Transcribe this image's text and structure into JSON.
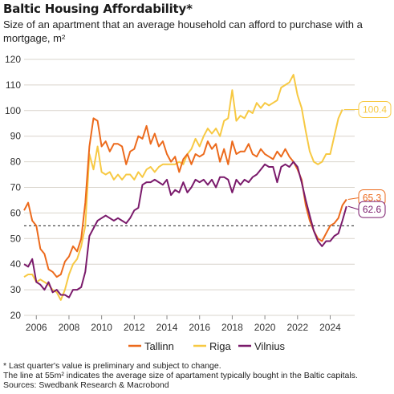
{
  "title": "Baltic Housing Affordability*",
  "subtitle": "Size of an apartment that an average household can afford to purchase with a mortgage, m²",
  "footnotes": [
    "* Last quarter's value is preliminary and subject to change.",
    "The line at 55m² indicates the average size of apartament typically bought in the Baltic capitals.",
    "Sources: Swedbank Research & Macrobond"
  ],
  "colors": {
    "Tallinn": "#ec6a1c",
    "Riga": "#f7c943",
    "Vilnius": "#7a1a6b",
    "grid": "#d9d4cc",
    "reference": "#222222"
  },
  "chart_data": {
    "type": "line",
    "title": "Baltic Housing Affordability*",
    "xlabel": "",
    "ylabel": "",
    "xlim": [
      2005.25,
      2025.5
    ],
    "ylim": [
      20,
      120
    ],
    "y_ticks": [
      20,
      30,
      40,
      50,
      60,
      70,
      80,
      90,
      100,
      110,
      120
    ],
    "x_ticks": [
      2006,
      2008,
      2010,
      2012,
      2014,
      2016,
      2018,
      2020,
      2022,
      2024
    ],
    "x_tick_labels": [
      "2006",
      "2008",
      "2010",
      "2012",
      "2014",
      "2016",
      "2018",
      "2020",
      "2022",
      "2024"
    ],
    "grid": true,
    "legend": "bottom",
    "reference_line": {
      "y": 55,
      "style": "dashed"
    },
    "series": [
      {
        "name": "Tallinn",
        "end_label": "65.3",
        "points": [
          [
            2005.25,
            61
          ],
          [
            2005.5,
            64
          ],
          [
            2005.75,
            57
          ],
          [
            2006.0,
            55
          ],
          [
            2006.25,
            46
          ],
          [
            2006.5,
            44
          ],
          [
            2006.75,
            38
          ],
          [
            2007.0,
            37
          ],
          [
            2007.25,
            35
          ],
          [
            2007.5,
            36
          ],
          [
            2007.75,
            41
          ],
          [
            2008.0,
            43
          ],
          [
            2008.25,
            47
          ],
          [
            2008.5,
            45
          ],
          [
            2008.75,
            50
          ],
          [
            2009.0,
            64
          ],
          [
            2009.25,
            86
          ],
          [
            2009.5,
            97
          ],
          [
            2009.75,
            96
          ],
          [
            2010.0,
            86
          ],
          [
            2010.25,
            88
          ],
          [
            2010.5,
            84
          ],
          [
            2010.75,
            87
          ],
          [
            2011.0,
            87
          ],
          [
            2011.25,
            86
          ],
          [
            2011.5,
            79
          ],
          [
            2011.75,
            84
          ],
          [
            2012.0,
            85
          ],
          [
            2012.25,
            90
          ],
          [
            2012.5,
            89
          ],
          [
            2012.75,
            94
          ],
          [
            2013.0,
            87
          ],
          [
            2013.25,
            91
          ],
          [
            2013.5,
            86
          ],
          [
            2013.75,
            88
          ],
          [
            2014.0,
            83
          ],
          [
            2014.25,
            80
          ],
          [
            2014.5,
            82
          ],
          [
            2014.75,
            76
          ],
          [
            2015.0,
            81
          ],
          [
            2015.25,
            83
          ],
          [
            2015.5,
            79
          ],
          [
            2015.75,
            83
          ],
          [
            2016.0,
            82
          ],
          [
            2016.25,
            83
          ],
          [
            2016.5,
            88
          ],
          [
            2016.75,
            85
          ],
          [
            2017.0,
            87
          ],
          [
            2017.25,
            80
          ],
          [
            2017.5,
            85
          ],
          [
            2017.75,
            79
          ],
          [
            2018.0,
            88
          ],
          [
            2018.25,
            83
          ],
          [
            2018.5,
            84
          ],
          [
            2018.75,
            84
          ],
          [
            2019.0,
            87
          ],
          [
            2019.25,
            83
          ],
          [
            2019.5,
            82
          ],
          [
            2019.75,
            85
          ],
          [
            2020.0,
            83
          ],
          [
            2020.25,
            82
          ],
          [
            2020.5,
            81
          ],
          [
            2020.75,
            84
          ],
          [
            2021.0,
            82
          ],
          [
            2021.25,
            85
          ],
          [
            2021.5,
            82
          ],
          [
            2021.75,
            80
          ],
          [
            2022.0,
            77
          ],
          [
            2022.25,
            73
          ],
          [
            2022.5,
            63
          ],
          [
            2022.75,
            57
          ],
          [
            2023.0,
            53
          ],
          [
            2023.25,
            50
          ],
          [
            2023.5,
            49
          ],
          [
            2023.75,
            52
          ],
          [
            2024.0,
            55
          ],
          [
            2024.25,
            56
          ],
          [
            2024.5,
            58
          ],
          [
            2024.75,
            63
          ],
          [
            2025.0,
            65.3
          ]
        ]
      },
      {
        "name": "Riga",
        "end_label": "100.4",
        "points": [
          [
            2005.25,
            35
          ],
          [
            2005.5,
            36
          ],
          [
            2005.75,
            36
          ],
          [
            2006.0,
            33
          ],
          [
            2006.25,
            34
          ],
          [
            2006.5,
            33
          ],
          [
            2006.75,
            32
          ],
          [
            2007.0,
            30
          ],
          [
            2007.25,
            29
          ],
          [
            2007.5,
            26
          ],
          [
            2007.75,
            30
          ],
          [
            2008.0,
            36
          ],
          [
            2008.25,
            40
          ],
          [
            2008.5,
            42
          ],
          [
            2008.75,
            47
          ],
          [
            2009.0,
            55
          ],
          [
            2009.25,
            83
          ],
          [
            2009.5,
            77
          ],
          [
            2009.75,
            86
          ],
          [
            2010.0,
            76
          ],
          [
            2010.25,
            75
          ],
          [
            2010.5,
            76
          ],
          [
            2010.75,
            73
          ],
          [
            2011.0,
            75
          ],
          [
            2011.25,
            73
          ],
          [
            2011.5,
            75
          ],
          [
            2011.75,
            75
          ],
          [
            2012.0,
            73
          ],
          [
            2012.25,
            76
          ],
          [
            2012.5,
            74
          ],
          [
            2012.75,
            77
          ],
          [
            2013.0,
            78
          ],
          [
            2013.25,
            76
          ],
          [
            2013.5,
            78
          ],
          [
            2013.75,
            79
          ],
          [
            2014.0,
            79
          ],
          [
            2014.25,
            79
          ],
          [
            2014.5,
            79
          ],
          [
            2014.75,
            80
          ],
          [
            2015.0,
            79
          ],
          [
            2015.25,
            83
          ],
          [
            2015.5,
            85
          ],
          [
            2015.75,
            89
          ],
          [
            2016.0,
            86
          ],
          [
            2016.25,
            90
          ],
          [
            2016.5,
            93
          ],
          [
            2016.75,
            91
          ],
          [
            2017.0,
            93
          ],
          [
            2017.25,
            90
          ],
          [
            2017.5,
            96
          ],
          [
            2017.75,
            97
          ],
          [
            2018.0,
            108
          ],
          [
            2018.25,
            96
          ],
          [
            2018.5,
            98
          ],
          [
            2018.75,
            97
          ],
          [
            2019.0,
            100
          ],
          [
            2019.25,
            99
          ],
          [
            2019.5,
            103
          ],
          [
            2019.75,
            101
          ],
          [
            2020.0,
            103
          ],
          [
            2020.25,
            102
          ],
          [
            2020.5,
            103
          ],
          [
            2020.75,
            104
          ],
          [
            2021.0,
            109
          ],
          [
            2021.25,
            110
          ],
          [
            2021.5,
            111
          ],
          [
            2021.75,
            114
          ],
          [
            2022.0,
            106
          ],
          [
            2022.25,
            101
          ],
          [
            2022.5,
            92
          ],
          [
            2022.75,
            84
          ],
          [
            2023.0,
            80
          ],
          [
            2023.25,
            79
          ],
          [
            2023.5,
            80
          ],
          [
            2023.75,
            83
          ],
          [
            2024.0,
            83
          ],
          [
            2024.25,
            90
          ],
          [
            2024.5,
            97
          ],
          [
            2024.75,
            100.4
          ]
        ]
      },
      {
        "name": "Vilnius",
        "end_label": "62.6",
        "points": [
          [
            2005.25,
            40
          ],
          [
            2005.5,
            39
          ],
          [
            2005.75,
            42
          ],
          [
            2006.0,
            33
          ],
          [
            2006.25,
            32
          ],
          [
            2006.5,
            30
          ],
          [
            2006.75,
            33
          ],
          [
            2007.0,
            29
          ],
          [
            2007.25,
            30
          ],
          [
            2007.5,
            28
          ],
          [
            2007.75,
            28
          ],
          [
            2008.0,
            27
          ],
          [
            2008.25,
            30
          ],
          [
            2008.5,
            30
          ],
          [
            2008.75,
            31
          ],
          [
            2009.0,
            37
          ],
          [
            2009.25,
            51
          ],
          [
            2009.5,
            54
          ],
          [
            2009.75,
            57
          ],
          [
            2010.0,
            58
          ],
          [
            2010.25,
            59
          ],
          [
            2010.5,
            58
          ],
          [
            2010.75,
            57
          ],
          [
            2011.0,
            58
          ],
          [
            2011.25,
            57
          ],
          [
            2011.5,
            56
          ],
          [
            2011.75,
            58
          ],
          [
            2012.0,
            61
          ],
          [
            2012.25,
            62
          ],
          [
            2012.5,
            71
          ],
          [
            2012.75,
            72
          ],
          [
            2013.0,
            72
          ],
          [
            2013.25,
            73
          ],
          [
            2013.5,
            72
          ],
          [
            2013.75,
            71
          ],
          [
            2014.0,
            73
          ],
          [
            2014.25,
            67
          ],
          [
            2014.5,
            69
          ],
          [
            2014.75,
            68
          ],
          [
            2015.0,
            72
          ],
          [
            2015.25,
            68
          ],
          [
            2015.5,
            70
          ],
          [
            2015.75,
            73
          ],
          [
            2016.0,
            72
          ],
          [
            2016.25,
            73
          ],
          [
            2016.5,
            71
          ],
          [
            2016.75,
            73
          ],
          [
            2017.0,
            70
          ],
          [
            2017.25,
            74
          ],
          [
            2017.5,
            74
          ],
          [
            2017.75,
            73
          ],
          [
            2018.0,
            68
          ],
          [
            2018.25,
            73
          ],
          [
            2018.5,
            71
          ],
          [
            2018.75,
            73
          ],
          [
            2019.0,
            72
          ],
          [
            2019.25,
            74
          ],
          [
            2019.5,
            75
          ],
          [
            2019.75,
            77
          ],
          [
            2020.0,
            79
          ],
          [
            2020.25,
            78
          ],
          [
            2020.5,
            78
          ],
          [
            2020.75,
            72
          ],
          [
            2021.0,
            78
          ],
          [
            2021.25,
            79
          ],
          [
            2021.5,
            78
          ],
          [
            2021.75,
            80
          ],
          [
            2022.0,
            78
          ],
          [
            2022.25,
            72
          ],
          [
            2022.5,
            65
          ],
          [
            2022.75,
            59
          ],
          [
            2023.0,
            53
          ],
          [
            2023.25,
            49
          ],
          [
            2023.5,
            47
          ],
          [
            2023.75,
            49
          ],
          [
            2024.0,
            49
          ],
          [
            2024.25,
            51
          ],
          [
            2024.5,
            52
          ],
          [
            2024.75,
            57
          ],
          [
            2025.0,
            62.6
          ]
        ]
      }
    ]
  }
}
